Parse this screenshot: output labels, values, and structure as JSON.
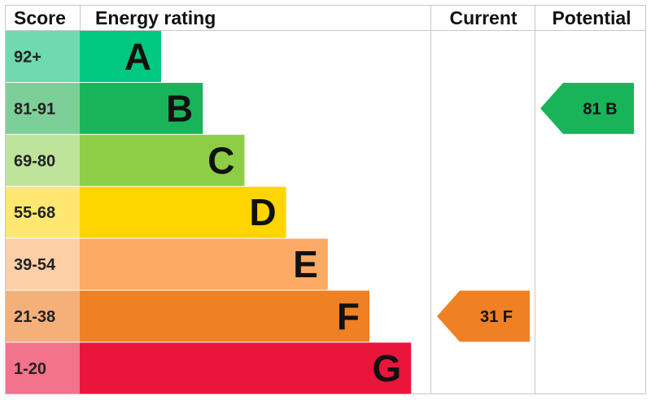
{
  "chart_data": {
    "type": "bar",
    "title": "",
    "headers": {
      "score": "Score",
      "rating": "Energy rating",
      "current": "Current",
      "potential": "Potential"
    },
    "categories": [
      "A",
      "B",
      "C",
      "D",
      "E",
      "F",
      "G"
    ],
    "score_ranges": [
      "92+",
      "81-91",
      "69-80",
      "55-68",
      "39-54",
      "21-38",
      "1-20"
    ],
    "bands": [
      {
        "letter": "A",
        "range": "92+",
        "color": "#00c781",
        "score_color": "#6fd9b0"
      },
      {
        "letter": "B",
        "range": "81-91",
        "color": "#19b459",
        "score_color": "#7dcf98"
      },
      {
        "letter": "C",
        "range": "69-80",
        "color": "#8dce46",
        "score_color": "#bee39a"
      },
      {
        "letter": "D",
        "range": "55-68",
        "color": "#ffd500",
        "score_color": "#ffe771"
      },
      {
        "letter": "E",
        "range": "39-54",
        "color": "#fcaa65",
        "score_color": "#fdcfa7"
      },
      {
        "letter": "F",
        "range": "21-38",
        "color": "#ef8023",
        "score_color": "#f5b07a"
      },
      {
        "letter": "G",
        "range": "1-20",
        "color": "#e9153b",
        "score_color": "#f2738b"
      }
    ],
    "current": {
      "value": 31,
      "band": "F",
      "label": "31 F",
      "color": "#ef8023"
    },
    "potential": {
      "value": 81,
      "band": "B",
      "label": "81 B",
      "color": "#19b459"
    }
  }
}
